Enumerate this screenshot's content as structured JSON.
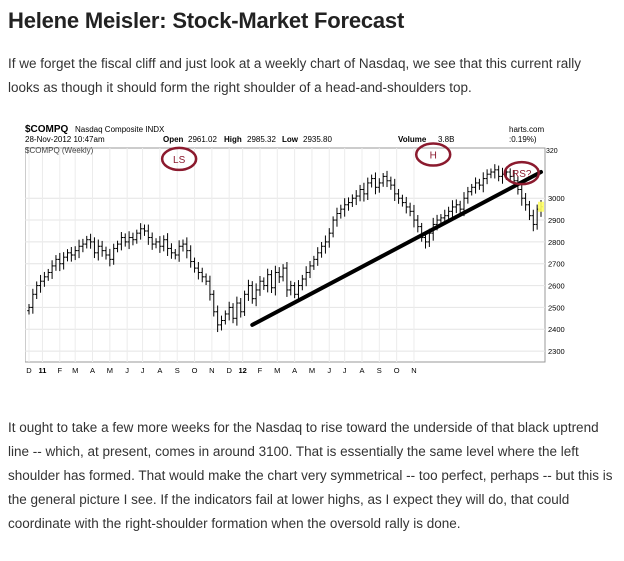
{
  "article": {
    "title": "Helene Meisler: Stock-Market Forecast",
    "para1": "If we forget the fiscal cliff and just look at a weekly chart of Nasdaq, we see that this current rally looks as though it should form the right shoulder of a head-and-shoulders top.",
    "para2": "It ought to take a few more weeks for the Nasdaq to rise toward the underside of that black uptrend line -- which, at present, comes in around 3100. That is essentially the same level where the left shoulder has formed. That would make the chart very symmetrical -- too perfect, perhaps -- but this is the general picture I see. If the indicators fail at lower highs, as I expect they will do, that could coordinate with the right-shoulder formation when the oversold rally is done."
  },
  "chart_data": {
    "type": "ohlc",
    "symbol": "$COMPQ",
    "name": "Nasdaq Composite INDX",
    "date": "28-Nov-2012 10:47am",
    "sub_label": "$COMPQ (Weekly)",
    "open_label": "Open",
    "open": "2961.02",
    "high_label": "High",
    "high": "2985.32",
    "low_label": "Low",
    "low": "2935.80",
    "volume_label": "Volume",
    "volume": "3.8B",
    "change": ":0.19%)",
    "source": "harts.com",
    "price_tag": "320",
    "ylim": [
      2250,
      3230
    ],
    "yticks": [
      2300,
      2400,
      2500,
      2600,
      2700,
      2800,
      2900,
      3000
    ],
    "month_labels": [
      {
        "t": "D",
        "w": 0
      },
      {
        "t": "11",
        "w": 3.5,
        "bold": true
      },
      {
        "t": "F",
        "w": 8
      },
      {
        "t": "M",
        "w": 12
      },
      {
        "t": "A",
        "w": 16.5
      },
      {
        "t": "M",
        "w": 21
      },
      {
        "t": "J",
        "w": 25.5
      },
      {
        "t": "J",
        "w": 29.5
      },
      {
        "t": "A",
        "w": 34
      },
      {
        "t": "S",
        "w": 38.5
      },
      {
        "t": "O",
        "w": 43
      },
      {
        "t": "N",
        "w": 47.5
      },
      {
        "t": "D",
        "w": 52
      },
      {
        "t": "12",
        "w": 55.5,
        "bold": true
      },
      {
        "t": "F",
        "w": 60
      },
      {
        "t": "M",
        "w": 64.5
      },
      {
        "t": "A",
        "w": 69
      },
      {
        "t": "M",
        "w": 73.5
      },
      {
        "t": "J",
        "w": 78
      },
      {
        "t": "J",
        "w": 82
      },
      {
        "t": "A",
        "w": 86.5
      },
      {
        "t": "S",
        "w": 91
      },
      {
        "t": "O",
        "w": 95.5
      },
      {
        "t": "N",
        "w": 100
      }
    ],
    "close": [
      2500,
      2560,
      2600,
      2620,
      2640,
      2660,
      2690,
      2720,
      2700,
      2730,
      2750,
      2740,
      2760,
      2780,
      2790,
      2810,
      2800,
      2750,
      2780,
      2760,
      2740,
      2720,
      2770,
      2790,
      2820,
      2800,
      2820,
      2810,
      2840,
      2860,
      2850,
      2820,
      2790,
      2800,
      2780,
      2810,
      2770,
      2750,
      2740,
      2780,
      2790,
      2760,
      2710,
      2680,
      2660,
      2640,
      2620,
      2560,
      2480,
      2420,
      2440,
      2470,
      2500,
      2450,
      2520,
      2480,
      2560,
      2600,
      2540,
      2580,
      2620,
      2600,
      2650,
      2590,
      2660,
      2640,
      2680,
      2580,
      2600,
      2560,
      2600,
      2630,
      2660,
      2690,
      2720,
      2750,
      2780,
      2800,
      2840,
      2900,
      2930,
      2950,
      2970,
      2980,
      3000,
      3010,
      3040,
      3020,
      3070,
      3090,
      3050,
      3070,
      3100,
      3080,
      3060,
      3020,
      3000,
      2980,
      2960,
      2940,
      2900,
      2870,
      2820,
      2800,
      2840,
      2880,
      2900,
      2910,
      2920,
      2940,
      2960,
      2970,
      2950,
      3000,
      3030,
      3050,
      3070,
      3060,
      3090,
      3110,
      3120,
      3130,
      3100,
      3110,
      3120,
      3100,
      3080,
      3040,
      3000,
      2970,
      2920,
      2880,
      2950,
      2961
    ],
    "trendline": {
      "from": {
        "w": 58,
        "v": 2420
      },
      "to": {
        "w": 133,
        "v": 3120
      }
    },
    "annotations": [
      {
        "label": "LS",
        "w": 39,
        "v": 3180
      },
      {
        "label": "H",
        "w": 105,
        "v": 3200
      },
      {
        "label": "RS?",
        "w": 128,
        "v": 3115
      }
    ]
  }
}
